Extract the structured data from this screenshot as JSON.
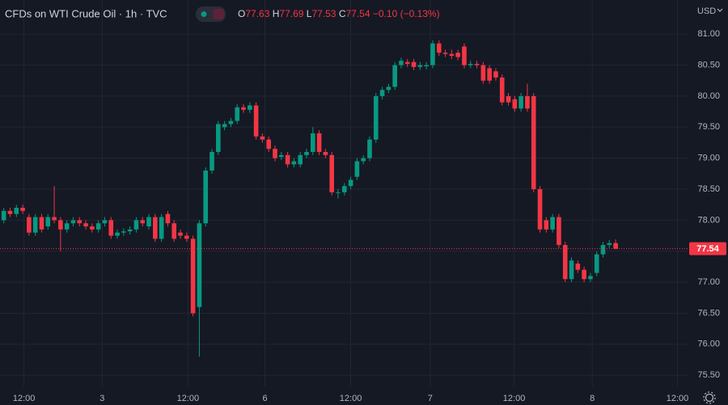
{
  "chart_data": {
    "type": "candlestick",
    "title": "CFDs on WTI Crude Oil · 1h · TVC",
    "ohlc_labels": [
      "O",
      "H",
      "L",
      "C"
    ],
    "change": "−0.10 (−0.13%)",
    "currency": "USD",
    "up_color": "#089981",
    "down_color": "#f23645",
    "grid": true,
    "xlim": [
      -0.6,
      108.4
    ],
    "xticks": [
      {
        "value": 3.2,
        "label": "12:00"
      },
      {
        "value": 15.6,
        "label": "3"
      },
      {
        "value": 29.2,
        "label": "12:00"
      },
      {
        "value": 41.4,
        "label": "6"
      },
      {
        "value": 55,
        "label": "12:00"
      },
      {
        "value": 67.6,
        "label": "7"
      },
      {
        "value": 80.9,
        "label": "12:00"
      },
      {
        "value": 93.3,
        "label": "8"
      },
      {
        "value": 106.8,
        "label": "12:00"
      }
    ],
    "ylim": [
      75.32,
      81.55
    ],
    "yticks": [
      {
        "value": 75.5,
        "label": "75.50"
      },
      {
        "value": 76,
        "label": "76.00"
      },
      {
        "value": 76.5,
        "label": "76.50"
      },
      {
        "value": 77,
        "label": "77.00"
      },
      {
        "value": 77.5,
        "label": "77.50"
      },
      {
        "value": 78,
        "label": "78.00"
      },
      {
        "value": 78.5,
        "label": "78.50"
      },
      {
        "value": 79,
        "label": "79.00"
      },
      {
        "value": 79.5,
        "label": "79.50"
      },
      {
        "value": 80,
        "label": "80.00"
      },
      {
        "value": 80.5,
        "label": "80.50"
      },
      {
        "value": 81,
        "label": "81.00"
      }
    ],
    "open": [
      78.0,
      78.15,
      78.1,
      78.2,
      78.05,
      77.8,
      78.05,
      77.9,
      78.05,
      78.0,
      77.85,
      77.95,
      78.0,
      77.95,
      77.9,
      77.85,
      77.95,
      78.0,
      77.75,
      77.8,
      77.82,
      77.85,
      78.0,
      77.9,
      78.05,
      77.7,
      78.1,
      77.95,
      77.8,
      77.75,
      77.7,
      76.6,
      77.95,
      78.8,
      79.1,
      79.5,
      79.55,
      79.6,
      79.82,
      79.78,
      79.85,
      79.35,
      79.3,
      79.15,
      79.02,
      79.05,
      78.9,
      78.9,
      79.05,
      79.1,
      79.4,
      79.1,
      79.05,
      78.45,
      78.45,
      78.55,
      78.7,
      78.95,
      79.0,
      79.3,
      80.0,
      80.1,
      80.15,
      80.5,
      80.55,
      80.55,
      80.47,
      80.48,
      80.5,
      80.85,
      80.7,
      80.68,
      80.7,
      80.8,
      80.5,
      80.52,
      80.5,
      80.45,
      80.4,
      80.3,
      80.0,
      79.95,
      79.8,
      80.0,
      80.0,
      78.5,
      78.0,
      77.85,
      78.05,
      77.6,
      77.05,
      77.3,
      77.2,
      77.05,
      77.15,
      77.45,
      77.6,
      77.63
    ],
    "high": [
      78.2,
      78.2,
      78.25,
      78.25,
      78.1,
      78.1,
      78.1,
      78.1,
      78.55,
      78.05,
      78.0,
      78.05,
      78.05,
      78.0,
      77.95,
      78.0,
      78.05,
      78.05,
      77.85,
      77.87,
      77.9,
      78.05,
      78.05,
      78.1,
      78.1,
      78.1,
      78.15,
      78.0,
      77.85,
      77.8,
      77.75,
      78.0,
      78.85,
      79.15,
      79.6,
      79.6,
      79.65,
      79.87,
      79.87,
      79.9,
      79.9,
      79.4,
      79.35,
      79.2,
      79.1,
      79.1,
      79.0,
      79.1,
      79.15,
      79.5,
      79.45,
      79.15,
      79.1,
      78.5,
      78.6,
      78.7,
      79.0,
      79.05,
      79.35,
      80.05,
      80.15,
      80.2,
      80.55,
      80.62,
      80.6,
      80.6,
      80.55,
      80.55,
      80.9,
      80.9,
      80.75,
      80.75,
      80.75,
      80.85,
      80.57,
      80.57,
      80.55,
      80.5,
      80.45,
      80.35,
      80.05,
      80.0,
      80.05,
      80.2,
      80.05,
      78.55,
      78.05,
      78.1,
      78.1,
      77.65,
      77.4,
      77.35,
      77.25,
      77.15,
      77.5,
      77.65,
      77.68,
      77.69
    ],
    "low": [
      77.95,
      78.05,
      78.05,
      78.1,
      77.75,
      77.75,
      77.8,
      77.85,
      77.95,
      77.5,
      77.8,
      77.9,
      77.9,
      77.85,
      77.8,
      77.8,
      77.9,
      77.7,
      77.7,
      77.75,
      77.77,
      77.8,
      77.9,
      77.85,
      77.65,
      77.65,
      77.9,
      77.65,
      77.7,
      77.65,
      76.45,
      75.8,
      77.9,
      78.75,
      79.05,
      79.45,
      79.5,
      79.55,
      79.73,
      79.73,
      79.3,
      79.25,
      79.1,
      78.95,
      78.97,
      78.85,
      78.85,
      78.85,
      79.0,
      79.05,
      79.05,
      79.0,
      78.4,
      78.35,
      78.4,
      78.5,
      78.65,
      78.9,
      78.95,
      79.25,
      79.95,
      80.05,
      80.1,
      80.45,
      80.47,
      80.42,
      80.42,
      80.43,
      80.45,
      80.65,
      80.63,
      80.6,
      80.58,
      80.45,
      80.45,
      80.45,
      80.2,
      80.2,
      80.25,
      79.85,
      79.85,
      79.75,
      79.75,
      79.75,
      78.45,
      77.8,
      77.8,
      77.8,
      77.55,
      77.0,
      77.0,
      77.15,
      77.0,
      77.0,
      77.1,
      77.4,
      77.55,
      77.53
    ],
    "close": [
      78.15,
      78.1,
      78.2,
      78.15,
      77.8,
      78.05,
      77.85,
      78.05,
      78.0,
      77.85,
      77.95,
      78.0,
      77.95,
      77.9,
      77.85,
      77.95,
      78.0,
      77.75,
      77.8,
      77.82,
      77.85,
      78.0,
      77.95,
      78.05,
      77.7,
      78.05,
      77.95,
      77.7,
      77.75,
      77.7,
      76.5,
      77.95,
      78.8,
      79.1,
      79.55,
      79.55,
      79.6,
      79.82,
      79.78,
      79.85,
      79.35,
      79.3,
      79.15,
      79.0,
      79.05,
      78.9,
      78.95,
      79.05,
      79.1,
      79.4,
      79.1,
      79.05,
      78.45,
      78.45,
      78.55,
      78.65,
      78.95,
      79.0,
      79.3,
      80.0,
      80.1,
      80.15,
      80.5,
      80.57,
      80.52,
      80.47,
      80.5,
      80.5,
      80.85,
      80.7,
      80.68,
      80.65,
      80.63,
      80.5,
      80.52,
      80.5,
      80.25,
      80.25,
      80.3,
      79.9,
      79.9,
      79.8,
      80.0,
      79.8,
      78.5,
      77.85,
      77.85,
      78.05,
      77.6,
      77.05,
      77.35,
      77.2,
      77.05,
      77.1,
      77.45,
      77.6,
      77.63,
      77.54
    ]
  }
}
